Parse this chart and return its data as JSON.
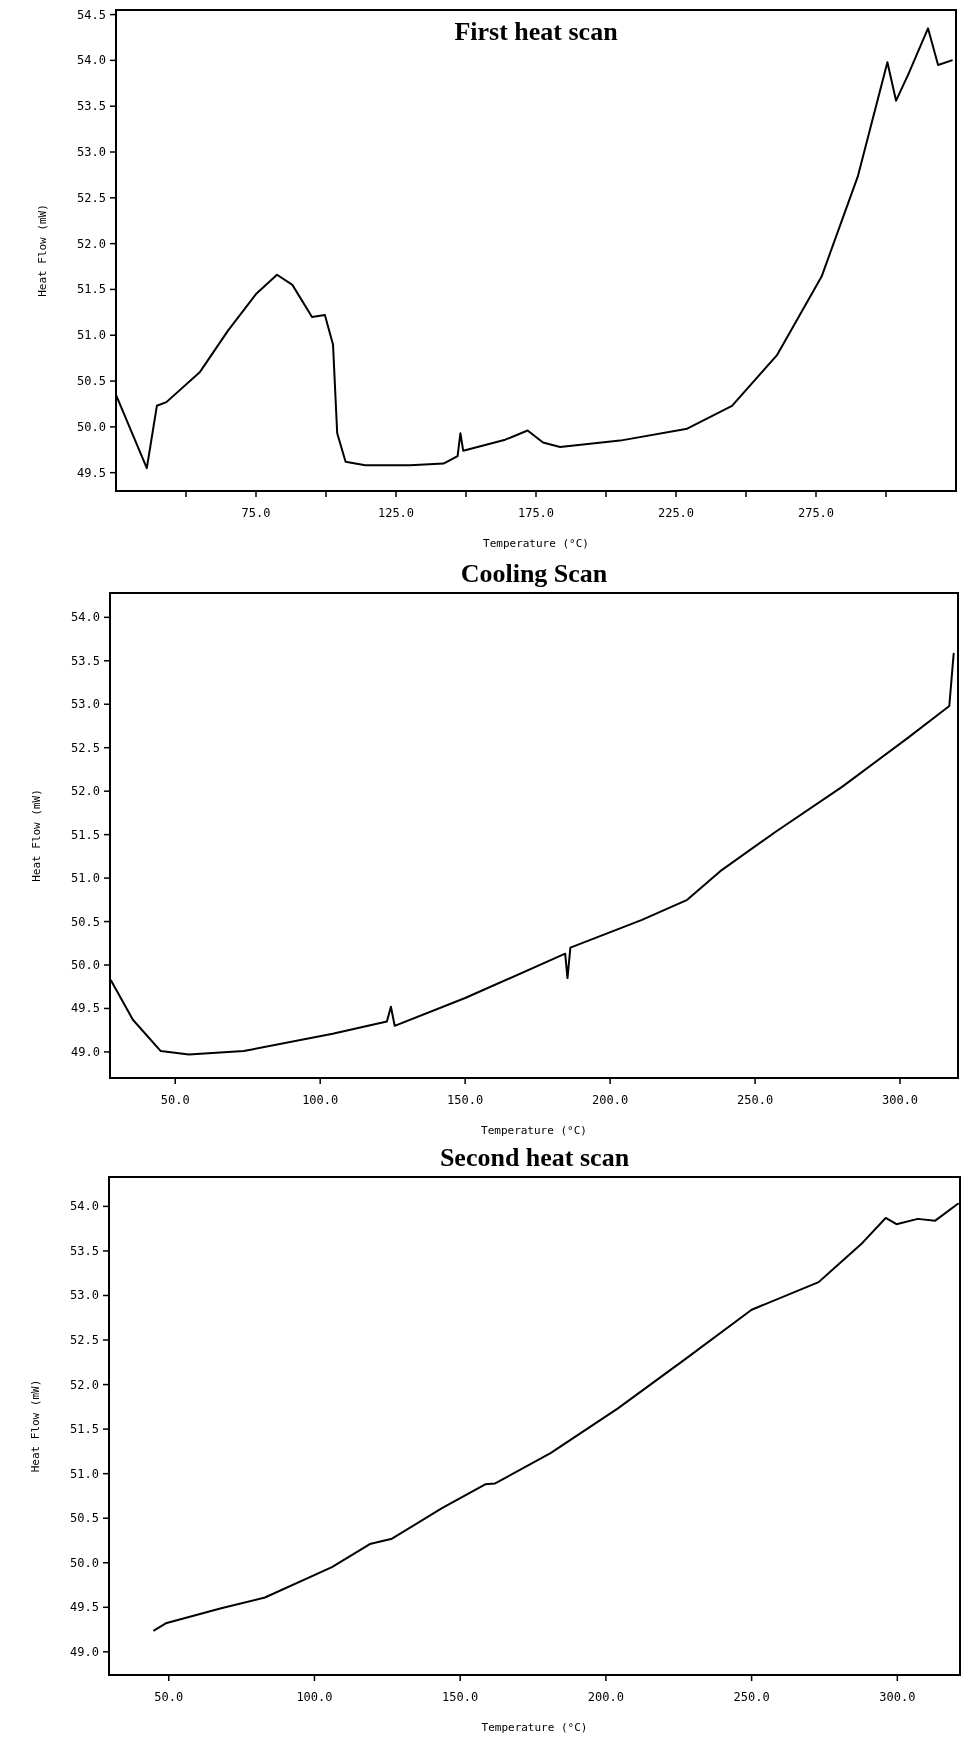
{
  "chart_data": [
    {
      "type": "line",
      "title": "First heat scan",
      "xlabel": "Temperature (°C)",
      "ylabel": "Heat Flow (mW)",
      "xlim": [
        25,
        325
      ],
      "ylim": [
        49.3,
        54.55
      ],
      "xticks": [
        {
          "value": 50,
          "label": null
        },
        {
          "value": 75,
          "label": "75.0"
        },
        {
          "value": 100,
          "label": null
        },
        {
          "value": 125,
          "label": "125.0"
        },
        {
          "value": 150,
          "label": null
        },
        {
          "value": 175,
          "label": "175.0"
        },
        {
          "value": 200,
          "label": null
        },
        {
          "value": 225,
          "label": "225.0"
        },
        {
          "value": 250,
          "label": null
        },
        {
          "value": 275,
          "label": "275.0"
        },
        {
          "value": 300,
          "label": null
        }
      ],
      "yticks": [
        {
          "value": 49.5,
          "label": "49.5"
        },
        {
          "value": 50,
          "label": "50.0"
        },
        {
          "value": 50.5,
          "label": "50.5"
        },
        {
          "value": 51,
          "label": "51.0"
        },
        {
          "value": 51.5,
          "label": "51.5"
        },
        {
          "value": 52,
          "label": "52.0"
        },
        {
          "value": 52.5,
          "label": "52.5"
        },
        {
          "value": 53,
          "label": "53.0"
        },
        {
          "value": 53.5,
          "label": "53.5"
        },
        {
          "value": 54,
          "label": "54.0"
        },
        {
          "value": 54.5,
          "label": "54.5"
        }
      ],
      "series": [
        {
          "color": "#000000",
          "x": [
            25,
            36,
            39.6,
            43,
            55,
            65,
            75,
            82.5,
            88,
            95,
            99.6,
            102.5,
            104,
            107,
            114,
            130,
            142,
            147,
            148,
            149,
            164,
            172,
            177.5,
            183.6,
            205,
            229,
            245,
            261,
            277,
            290,
            300.5,
            303.6,
            308,
            315,
            318.6,
            323.5
          ],
          "values": [
            50.35,
            49.55,
            50.23,
            50.27,
            50.6,
            51.05,
            51.45,
            51.66,
            51.55,
            51.2,
            51.22,
            50.9,
            49.93,
            49.62,
            49.58,
            49.58,
            49.6,
            49.68,
            49.93,
            49.74,
            49.86,
            49.96,
            49.83,
            49.78,
            49.85,
            49.98,
            50.23,
            50.78,
            51.64,
            52.74,
            53.98,
            53.56,
            53.85,
            54.35,
            53.95,
            54.0
          ]
        }
      ]
    },
    {
      "type": "line",
      "title": "Cooling Scan",
      "xlabel": "Temperature (°C)",
      "ylabel": "Heat Flow (mW)",
      "xlim": [
        27.5,
        320
      ],
      "ylim": [
        48.7,
        54.28
      ],
      "xticks": [
        {
          "value": 50,
          "label": "50.0"
        },
        {
          "value": 100,
          "label": "100.0"
        },
        {
          "value": 150,
          "label": "150.0"
        },
        {
          "value": 200,
          "label": "200.0"
        },
        {
          "value": 250,
          "label": "250.0"
        },
        {
          "value": 300,
          "label": "300.0"
        }
      ],
      "yticks": [
        {
          "value": 49,
          "label": "49.0"
        },
        {
          "value": 49.5,
          "label": "49.5"
        },
        {
          "value": 50,
          "label": "50.0"
        },
        {
          "value": 50.5,
          "label": "50.5"
        },
        {
          "value": 51,
          "label": "51.0"
        },
        {
          "value": 51.5,
          "label": "51.5"
        },
        {
          "value": 52,
          "label": "52.0"
        },
        {
          "value": 52.5,
          "label": "52.5"
        },
        {
          "value": 53,
          "label": "53.0"
        },
        {
          "value": 53.5,
          "label": "53.5"
        },
        {
          "value": 54,
          "label": "54.0"
        }
      ],
      "series": [
        {
          "color": "#000000",
          "x": [
            27.9,
            35.4,
            45,
            54.7,
            73.6,
            104.3,
            123,
            124.4,
            125.7,
            150,
            184.5,
            185.3,
            186.3,
            211,
            226.6,
            238,
            257,
            280,
            302.6,
            317,
            318.5
          ],
          "values": [
            49.82,
            49.37,
            49.01,
            48.97,
            49.01,
            49.21,
            49.35,
            49.52,
            49.3,
            49.62,
            50.13,
            49.85,
            50.2,
            50.52,
            50.75,
            51.08,
            51.53,
            52.05,
            52.61,
            52.98,
            53.58
          ]
        }
      ]
    },
    {
      "type": "line",
      "title": "Second heat scan",
      "xlabel": "Temperature (°C)",
      "ylabel": "Heat Flow (mW)",
      "xlim": [
        29.5,
        321.5
      ],
      "ylim": [
        48.74,
        54.33
      ],
      "xticks": [
        {
          "value": 50,
          "label": "50.0"
        },
        {
          "value": 100,
          "label": "100.0"
        },
        {
          "value": 150,
          "label": "150.0"
        },
        {
          "value": 200,
          "label": "200.0"
        },
        {
          "value": 250,
          "label": "250.0"
        },
        {
          "value": 300,
          "label": "300.0"
        }
      ],
      "yticks": [
        {
          "value": 49,
          "label": "49.0"
        },
        {
          "value": 49.5,
          "label": "49.5"
        },
        {
          "value": 50,
          "label": "50.0"
        },
        {
          "value": 50.5,
          "label": "50.5"
        },
        {
          "value": 51,
          "label": "51.0"
        },
        {
          "value": 51.5,
          "label": "51.5"
        },
        {
          "value": 52,
          "label": "52.0"
        },
        {
          "value": 52.5,
          "label": "52.5"
        },
        {
          "value": 53,
          "label": "53.0"
        },
        {
          "value": 53.5,
          "label": "53.5"
        },
        {
          "value": 54,
          "label": "54.0"
        }
      ],
      "series": [
        {
          "color": "#000000",
          "x": [
            45,
            49,
            68,
            83,
            106,
            119,
            126.6,
            143.6,
            158.6,
            162,
            181,
            204,
            227,
            250,
            273,
            288,
            296,
            299.7,
            307,
            313,
            320.8
          ],
          "values": [
            49.24,
            49.32,
            49.49,
            49.61,
            49.95,
            50.21,
            50.27,
            50.61,
            50.88,
            50.89,
            51.23,
            51.73,
            52.28,
            52.84,
            53.15,
            53.59,
            53.87,
            53.8,
            53.86,
            53.84,
            54.03
          ]
        }
      ]
    }
  ]
}
